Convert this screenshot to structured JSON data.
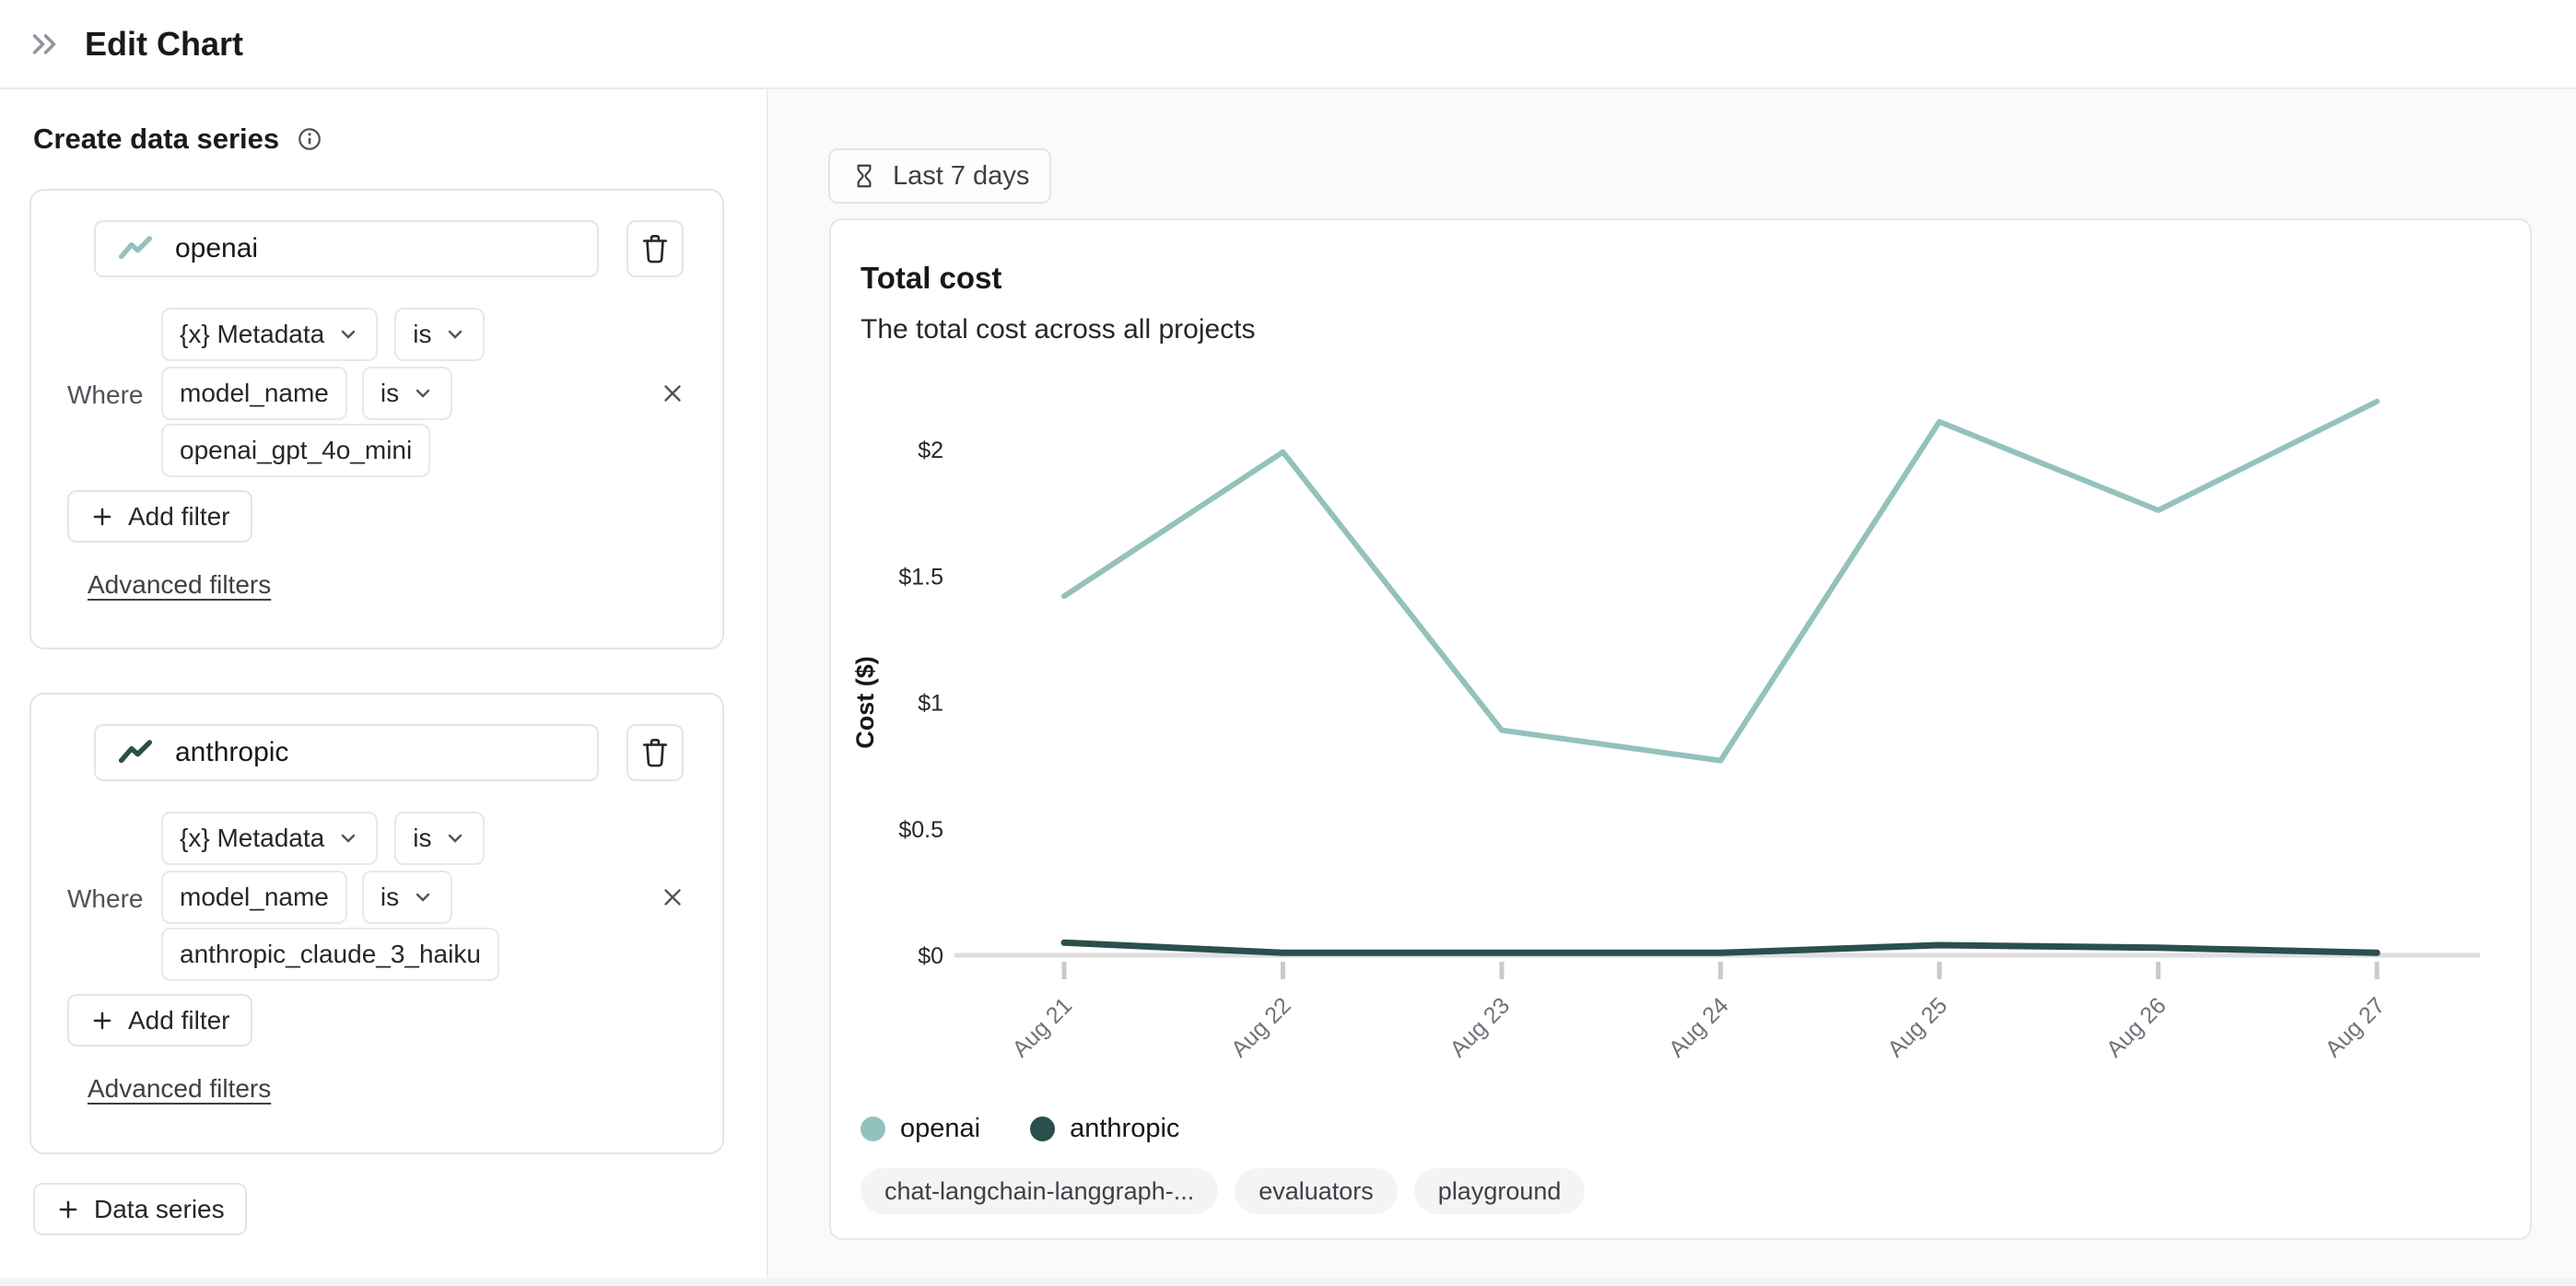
{
  "header": {
    "title": "Edit Chart"
  },
  "sidebar": {
    "heading": "Create data series",
    "add_series_label": "Data series",
    "cards": [
      {
        "name": "openai",
        "where_label": "Where",
        "field": "{x} Metadata",
        "field_op": "is",
        "key": "model_name",
        "key_op": "is",
        "value": "openai_gpt_4o_mini",
        "add_filter_label": "Add filter",
        "advanced_label": "Advanced filters"
      },
      {
        "name": "anthropic",
        "where_label": "Where",
        "field": "{x} Metadata",
        "field_op": "is",
        "key": "model_name",
        "key_op": "is",
        "value": "anthropic_claude_3_haiku",
        "add_filter_label": "Add filter",
        "advanced_label": "Advanced filters"
      }
    ]
  },
  "main": {
    "time_range_label": "Last 7 days",
    "card": {
      "title": "Total cost",
      "subtitle": "The total cost across all projects",
      "tags": [
        "chat-langchain-langgraph-...",
        "evaluators",
        "playground"
      ]
    }
  },
  "chart_data": {
    "type": "line",
    "title": "Total cost",
    "subtitle": "The total cost across all projects",
    "categories": [
      "Aug 21",
      "Aug 22",
      "Aug 23",
      "Aug 24",
      "Aug 25",
      "Aug 26",
      "Aug 27"
    ],
    "series": [
      {
        "name": "openai",
        "color": "#93c2bc",
        "values": [
          1.42,
          1.99,
          0.89,
          0.77,
          2.11,
          1.76,
          2.19
        ]
      },
      {
        "name": "anthropic",
        "color": "#2b4f4c",
        "values": [
          0.05,
          0.01,
          0.01,
          0.01,
          0.04,
          0.03,
          0.01
        ]
      }
    ],
    "ylabel": "Cost ($)",
    "yticks": [
      {
        "value": 0,
        "label": "$0"
      },
      {
        "value": 0.5,
        "label": "$0.5"
      },
      {
        "value": 1,
        "label": "$1"
      },
      {
        "value": 1.5,
        "label": "$1.5"
      },
      {
        "value": 2,
        "label": "$2"
      }
    ],
    "ylim": [
      0,
      2.3
    ],
    "grid": false,
    "legend_position": "bottom"
  }
}
